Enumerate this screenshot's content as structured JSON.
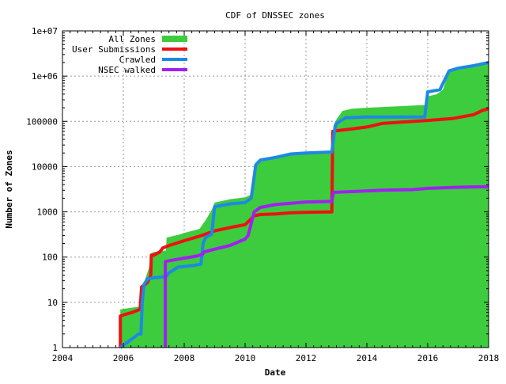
{
  "chart_data": {
    "type": "area",
    "title": "CDF of DNSSEC zones",
    "xlabel": "Date",
    "ylabel": "Number of Zones",
    "xlim": [
      2004,
      2018
    ],
    "ylim": [
      1,
      10000000
    ],
    "y_scale": "log",
    "grid": true,
    "legend_position": "top-left",
    "x_ticks": [
      2004,
      2006,
      2008,
      2010,
      2012,
      2014,
      2016,
      2018
    ],
    "x_tick_labels": [
      "2004",
      "2006",
      "2008",
      "2010",
      "2012",
      "2014",
      "2016",
      "2018"
    ],
    "y_ticks": [
      1,
      10,
      100,
      1000,
      10000,
      100000,
      1000000,
      10000000
    ],
    "y_tick_labels": [
      "1",
      "10",
      "100",
      "1000",
      "10000",
      "100000",
      "1e+06",
      "1e+07"
    ],
    "series": [
      {
        "name": "All Zones",
        "style": "area",
        "color": "#3dcc3d",
        "points": [
          [
            2005.9,
            1
          ],
          [
            2005.9,
            7
          ],
          [
            2006.5,
            8
          ],
          [
            2006.6,
            12
          ],
          [
            2006.7,
            30
          ],
          [
            2006.85,
            60
          ],
          [
            2006.9,
            120
          ],
          [
            2007.0,
            130
          ],
          [
            2007.4,
            140
          ],
          [
            2007.42,
            270
          ],
          [
            2007.8,
            310
          ],
          [
            2008.0,
            340
          ],
          [
            2008.5,
            420
          ],
          [
            2008.7,
            650
          ],
          [
            2008.9,
            1100
          ],
          [
            2009.0,
            1600
          ],
          [
            2009.5,
            1900
          ],
          [
            2010.0,
            2100
          ],
          [
            2010.2,
            2400
          ],
          [
            2010.3,
            9000
          ],
          [
            2010.5,
            14000
          ],
          [
            2011.0,
            16000
          ],
          [
            2011.5,
            19000
          ],
          [
            2012.0,
            21000
          ],
          [
            2012.85,
            22000
          ],
          [
            2012.9,
            80000
          ],
          [
            2013.0,
            110000
          ],
          [
            2013.2,
            170000
          ],
          [
            2013.5,
            190000
          ],
          [
            2014.0,
            200000
          ],
          [
            2015.0,
            215000
          ],
          [
            2015.9,
            230000
          ],
          [
            2015.95,
            350000
          ],
          [
            2016.3,
            400000
          ],
          [
            2016.5,
            500000
          ],
          [
            2016.7,
            1300000
          ],
          [
            2017.0,
            1500000
          ],
          [
            2017.5,
            1700000
          ],
          [
            2018.0,
            1900000
          ]
        ]
      },
      {
        "name": "User Submissions",
        "style": "line",
        "color": "#ee1111",
        "points": [
          [
            2005.9,
            1
          ],
          [
            2005.9,
            5
          ],
          [
            2006.1,
            5.5
          ],
          [
            2006.3,
            6
          ],
          [
            2006.55,
            7
          ],
          [
            2006.6,
            22
          ],
          [
            2006.7,
            24
          ],
          [
            2006.8,
            28
          ],
          [
            2006.9,
            40
          ],
          [
            2006.92,
            110
          ],
          [
            2007.0,
            110
          ],
          [
            2007.2,
            130
          ],
          [
            2007.3,
            160
          ],
          [
            2007.5,
            180
          ],
          [
            2008.0,
            230
          ],
          [
            2008.5,
            290
          ],
          [
            2009.0,
            380
          ],
          [
            2009.5,
            450
          ],
          [
            2010.0,
            520
          ],
          [
            2010.1,
            600
          ],
          [
            2010.3,
            820
          ],
          [
            2010.5,
            870
          ],
          [
            2011.0,
            900
          ],
          [
            2011.5,
            950
          ],
          [
            2012.0,
            980
          ],
          [
            2012.85,
            1000
          ],
          [
            2012.88,
            60000
          ],
          [
            2013.0,
            62000
          ],
          [
            2013.5,
            68000
          ],
          [
            2014.0,
            75000
          ],
          [
            2014.5,
            90000
          ],
          [
            2015.0,
            95000
          ],
          [
            2016.0,
            105000
          ],
          [
            2016.8,
            115000
          ],
          [
            2017.5,
            140000
          ],
          [
            2017.8,
            175000
          ],
          [
            2018.0,
            190000
          ]
        ]
      },
      {
        "name": "Crawled",
        "style": "line",
        "color": "#1e88e5",
        "points": [
          [
            2005.9,
            1
          ],
          [
            2006.5,
            2
          ],
          [
            2006.58,
            2
          ],
          [
            2006.62,
            10
          ],
          [
            2006.68,
            25
          ],
          [
            2006.8,
            33
          ],
          [
            2007.0,
            35
          ],
          [
            2007.4,
            37
          ],
          [
            2007.5,
            45
          ],
          [
            2007.8,
            60
          ],
          [
            2008.3,
            65
          ],
          [
            2008.55,
            70
          ],
          [
            2008.62,
            200
          ],
          [
            2008.7,
            270
          ],
          [
            2008.9,
            320
          ],
          [
            2009.0,
            1300
          ],
          [
            2009.5,
            1500
          ],
          [
            2010.0,
            1600
          ],
          [
            2010.2,
            2000
          ],
          [
            2010.35,
            11000
          ],
          [
            2010.5,
            14000
          ],
          [
            2011.0,
            16000
          ],
          [
            2011.5,
            19000
          ],
          [
            2012.0,
            20000
          ],
          [
            2012.85,
            21000
          ],
          [
            2012.95,
            70000
          ],
          [
            2013.0,
            90000
          ],
          [
            2013.3,
            120000
          ],
          [
            2014.0,
            125000
          ],
          [
            2015.0,
            125000
          ],
          [
            2015.9,
            125000
          ],
          [
            2016.0,
            450000
          ],
          [
            2016.4,
            500000
          ],
          [
            2016.7,
            1300000
          ],
          [
            2017.0,
            1500000
          ],
          [
            2017.5,
            1700000
          ],
          [
            2018.0,
            2000000
          ]
        ]
      },
      {
        "name": "NSEC walked",
        "style": "line",
        "color": "#a020f0",
        "points": [
          [
            2007.38,
            1
          ],
          [
            2007.38,
            80
          ],
          [
            2007.6,
            85
          ],
          [
            2008.0,
            95
          ],
          [
            2008.4,
            105
          ],
          [
            2008.6,
            115
          ],
          [
            2008.65,
            130
          ],
          [
            2009.0,
            150
          ],
          [
            2009.5,
            180
          ],
          [
            2010.0,
            250
          ],
          [
            2010.1,
            300
          ],
          [
            2010.3,
            1000
          ],
          [
            2010.5,
            1250
          ],
          [
            2011.0,
            1450
          ],
          [
            2011.5,
            1550
          ],
          [
            2012.0,
            1650
          ],
          [
            2012.85,
            1700
          ],
          [
            2012.9,
            2700
          ],
          [
            2013.5,
            2800
          ],
          [
            2014.0,
            2900
          ],
          [
            2014.5,
            3000
          ],
          [
            2015.5,
            3100
          ],
          [
            2016.0,
            3300
          ],
          [
            2017.0,
            3500
          ],
          [
            2018.0,
            3600
          ]
        ]
      }
    ]
  }
}
